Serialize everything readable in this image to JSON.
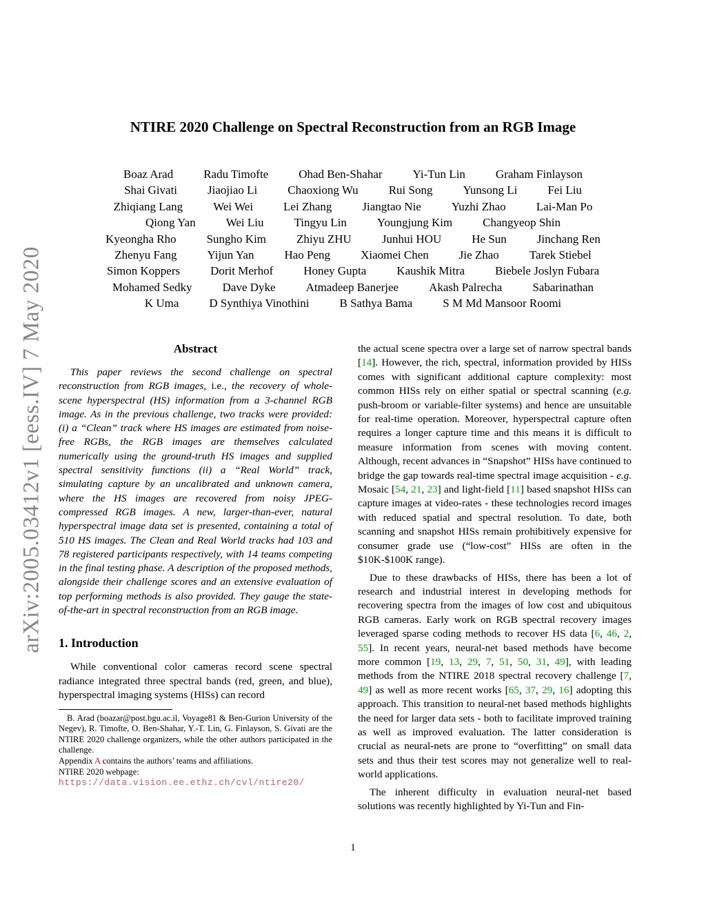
{
  "arxiv_label": "arXiv:2005.03412v1  [eess.IV]  7 May 2020",
  "title": "NTIRE 2020 Challenge on Spectral Reconstruction from an RGB Image",
  "authors": {
    "rows": [
      [
        "Boaz Arad",
        "Radu Timofte",
        "Ohad Ben-Shahar",
        "Yi-Tun Lin",
        "Graham Finlayson"
      ],
      [
        "Shai Givati",
        "Jiaojiao Li",
        "Chaoxiong Wu",
        "Rui Song",
        "Yunsong Li",
        "Fei Liu"
      ],
      [
        "Zhiqiang Lang",
        "Wei Wei",
        "Lei Zhang",
        "Jiangtao Nie",
        "Yuzhi Zhao",
        "Lai-Man Po"
      ],
      [
        "Qiong Yan",
        "Wei Liu",
        "Tingyu Lin",
        "Youngjung Kim",
        "Changyeop Shin"
      ],
      [
        "Kyeongha Rho",
        "Sungho Kim",
        "Zhiyu ZHU",
        "Junhui HOU",
        "He Sun",
        "Jinchang Ren"
      ],
      [
        "Zhenyu Fang",
        "Yijun Yan",
        "Hao Peng",
        "Xiaomei Chen",
        "Jie Zhao",
        "Tarek Stiebel"
      ],
      [
        "Simon Koppers",
        "Dorit Merhof",
        "Honey Gupta",
        "Kaushik Mitra",
        "Biebele Joslyn Fubara"
      ],
      [
        "Mohamed Sedky",
        "Dave Dyke",
        "Atmadeep Banerjee",
        "Akash Palrecha",
        "Sabarinathan"
      ],
      [
        "K Uma",
        "D Synthiya Vinothini",
        "B Sathya Bama",
        "S M Md Mansoor Roomi"
      ]
    ]
  },
  "abstract": {
    "heading": "Abstract",
    "segments": [
      {
        "t": "This paper reviews the second challenge on spectral reconstruction from RGB images, "
      },
      {
        "t": "i.e.,",
        "c": "rm"
      },
      {
        "t": " the recovery of whole-scene hyperspectral (HS) information from a 3-channel RGB image. As in the previous challenge, two tracks were provided: (i) a “Clean” track where HS images are estimated from noise-free RGBs, the RGB images are themselves calculated numerically using the ground-truth HS images and supplied spectral sensitivity functions (ii) a “Real World” track, simulating capture by an uncalibrated and unknown camera, where the HS images are recovered from noisy JPEG-compressed RGB images. A new, larger-than-ever, natural hyperspectral image data set is presented, containing a total of 510 HS images. The Clean and Real World tracks had 103 and 78 registered participants respectively, with 14 teams competing in the final testing phase. A description of the proposed methods, alongside their challenge scores and an extensive evaluation of top performing methods is also provided. They gauge the state-of-the-art in spectral reconstruction from an RGB image."
      }
    ]
  },
  "introduction": {
    "heading": "1. Introduction",
    "paragraph": "While conventional color cameras record scene spectral radiance integrated three spectral bands (red, green, and blue), hyperspectral imaging systems (HISs) can record"
  },
  "footnote": {
    "lines": [
      {
        "indent": true,
        "wrap": true,
        "segments": [
          {
            "t": "B. Arad (boazar@post.bgu.ac.il, Voyage81 & Ben-Gurion University of the Negev), R. Timofte, O. Ben-Shahar, Y.-T. Lin, G. Finlayson, S. Givati are the NTIRE 2020 challenge organizers, while the other authors participated in the challenge."
          }
        ]
      },
      {
        "segments": [
          {
            "t": "Appendix "
          },
          {
            "t": "A",
            "c": "red"
          },
          {
            "t": " contains the authors’ teams and affiliations."
          }
        ]
      },
      {
        "segments": [
          {
            "t": "NTIRE 2020 webpage:"
          }
        ]
      },
      {
        "segments": [
          {
            "t": "https://data.vision.ee.ethz.ch/cvl/ntire20/",
            "c": "url"
          }
        ]
      }
    ]
  },
  "right_column": {
    "paragraphs": [
      {
        "indent": false,
        "segments": [
          {
            "t": "the actual scene spectra over a large set of narrow spectral bands ["
          },
          {
            "t": "14",
            "c": "cite"
          },
          {
            "t": "]. However, the rich, spectral, information provided by HISs comes with significant additional capture complexity: most common HISs rely on either spatial or spectral scanning ("
          },
          {
            "t": "e.g.",
            "c": "em"
          },
          {
            "t": " push-broom or variable-filter systems) and hence are unsuitable for real-time operation. Moreover, hyperspectral capture often requires a longer capture time and this means it is difficult to measure information from scenes with moving content. Although, recent advances in “Snapshot” HISs have continued to bridge the gap towards real-time spectral image acquisition - "
          },
          {
            "t": "e.g.",
            "c": "em"
          },
          {
            "t": " Mosaic ["
          },
          {
            "t": "54",
            "c": "cite"
          },
          {
            "t": ", "
          },
          {
            "t": "21",
            "c": "cite"
          },
          {
            "t": ", "
          },
          {
            "t": "23",
            "c": "cite"
          },
          {
            "t": "] and light-field ["
          },
          {
            "t": "11",
            "c": "cite"
          },
          {
            "t": "] based snapshot HISs can capture images at video-rates - these technologies record images with reduced spatial and spectral resolution. To date, both scanning and snapshot HISs remain prohibitively expensive for consumer grade use (“low-cost” HISs are often in the $10K-$100K range)."
          }
        ]
      },
      {
        "indent": true,
        "segments": [
          {
            "t": "Due to these drawbacks of HISs, there has been a lot of research and industrial interest in developing methods for recovering spectra from the images of low cost and ubiquitous RGB cameras. Early work on RGB spectral recovery images leveraged sparse coding methods to recover HS data ["
          },
          {
            "t": "6",
            "c": "cite"
          },
          {
            "t": ", "
          },
          {
            "t": "46",
            "c": "cite"
          },
          {
            "t": ", "
          },
          {
            "t": "2",
            "c": "cite"
          },
          {
            "t": ", "
          },
          {
            "t": "55",
            "c": "cite"
          },
          {
            "t": "]. In recent years, neural-net based methods have become more common ["
          },
          {
            "t": "19",
            "c": "cite"
          },
          {
            "t": ", "
          },
          {
            "t": "13",
            "c": "cite"
          },
          {
            "t": ", "
          },
          {
            "t": "29",
            "c": "cite"
          },
          {
            "t": ", "
          },
          {
            "t": "7",
            "c": "cite"
          },
          {
            "t": ", "
          },
          {
            "t": "51",
            "c": "cite"
          },
          {
            "t": ", "
          },
          {
            "t": "50",
            "c": "cite"
          },
          {
            "t": ", "
          },
          {
            "t": "31",
            "c": "cite"
          },
          {
            "t": ", "
          },
          {
            "t": "49",
            "c": "cite"
          },
          {
            "t": "], with leading methods from the NTIRE 2018 spectral recovery challenge ["
          },
          {
            "t": "7",
            "c": "cite"
          },
          {
            "t": ", "
          },
          {
            "t": "49",
            "c": "cite"
          },
          {
            "t": "] as well as more recent works ["
          },
          {
            "t": "65",
            "c": "cite"
          },
          {
            "t": ", "
          },
          {
            "t": "37",
            "c": "cite"
          },
          {
            "t": ", "
          },
          {
            "t": "29",
            "c": "cite"
          },
          {
            "t": ", "
          },
          {
            "t": "16",
            "c": "cite"
          },
          {
            "t": "] adopting this approach. This transition to neural-net based methods highlights the need for larger data sets - both to facilitate improved training as well as improved evaluation. The latter consideration is crucial as neural-nets are prone to “overfitting” on small data sets and thus their test scores may not generalize well to real-world applications."
          }
        ]
      },
      {
        "indent": true,
        "segments": [
          {
            "t": "The inherent difficulty in evaluation neural-net based solutions was recently highlighted by Yi-Tun and Fin-"
          }
        ]
      }
    ]
  },
  "page_number": "1",
  "colors": {
    "cite_green": "#00b400",
    "link_red": "#e01b1b",
    "url_pink": "#c9568b",
    "arxiv_gray": "#868686"
  }
}
